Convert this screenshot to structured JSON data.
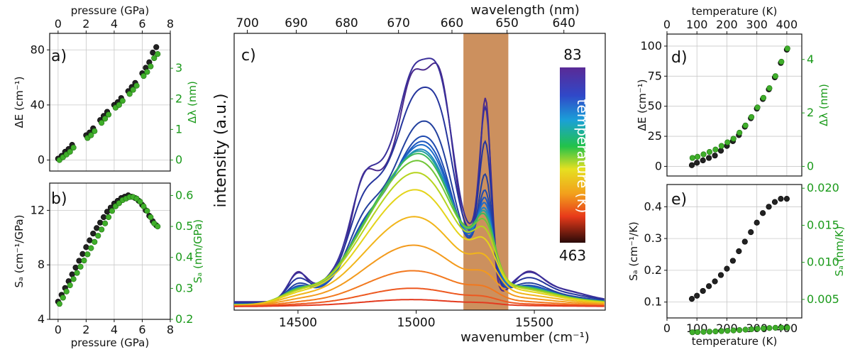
{
  "figure": {
    "panel_labels": {
      "a": "a)",
      "b": "b)",
      "c": "c)",
      "d": "d)",
      "e": "e)"
    },
    "colorbar": {
      "top_label": "83",
      "bottom_label": "463",
      "title": "temperature (K)"
    },
    "colors": {
      "black_marker": "#222222",
      "green_marker": "#1a9a1a",
      "band": "#c98a55"
    }
  },
  "chart_data": [
    {
      "id": "a",
      "type": "scatter",
      "xlabel": "pressure (GPa)",
      "ylabel": "ΔE (cm⁻¹)",
      "y2label": "Δλ (nm)",
      "xlim": [
        -0.6,
        8
      ],
      "ylim": [
        -8,
        92
      ],
      "y2lim": [
        -0.36,
        4.14
      ],
      "xticks": [
        "0",
        "2",
        "4",
        "6",
        "8"
      ],
      "yticks": [
        "0",
        "40",
        "80"
      ],
      "y2ticks": [
        "0",
        "1",
        "2",
        "3"
      ],
      "series": [
        {
          "color": "black",
          "x": [
            0,
            0.25,
            0.5,
            0.75,
            1,
            2,
            2.25,
            2.5,
            3,
            3.25,
            3.5,
            4,
            4.25,
            4.5,
            5,
            5.25,
            5.5,
            6,
            6.25,
            6.5,
            6.75,
            7
          ],
          "y": [
            1,
            3,
            6,
            8,
            11,
            18,
            20,
            23,
            29,
            32,
            35,
            40,
            42,
            45,
            50,
            53,
            56,
            63,
            67,
            71,
            78,
            82
          ]
        },
        {
          "color": "green",
          "x": [
            0.1,
            0.35,
            0.6,
            0.85,
            1.1,
            2.1,
            2.35,
            2.6,
            3.1,
            3.35,
            3.6,
            4.1,
            4.35,
            4.6,
            5.1,
            5.35,
            5.6,
            6.1,
            6.35,
            6.6,
            6.85,
            7.1
          ],
          "y": [
            0,
            2,
            4,
            6,
            9,
            16,
            18,
            21,
            27,
            30,
            33,
            38,
            40,
            43,
            48,
            51,
            54,
            61,
            64,
            68,
            74,
            77
          ]
        }
      ]
    },
    {
      "id": "b",
      "type": "scatter",
      "xlabel": "pressure (GPa)",
      "ylabel": "Sₐ (cm⁻¹/GPa)",
      "y2label": "Sₐ (nm/GPa)",
      "xlim": [
        -0.6,
        8
      ],
      "ylim": [
        4,
        14
      ],
      "y2lim": [
        0.2,
        0.64
      ],
      "xticks": [
        "0",
        "2",
        "4",
        "6",
        "8"
      ],
      "yticks": [
        "4",
        "8",
        "12"
      ],
      "y2ticks": [
        "0.2",
        "0.3",
        "0.4",
        "0.5",
        "0.6"
      ],
      "series": [
        {
          "color": "black",
          "x": [
            0,
            0.25,
            0.5,
            0.75,
            1,
            1.25,
            1.5,
            1.75,
            2,
            2.25,
            2.5,
            2.75,
            3,
            3.25,
            3.5,
            3.75,
            4,
            4.25,
            4.5,
            4.75,
            5,
            5.25,
            5.5,
            5.75,
            6,
            6.25,
            6.5,
            6.75,
            7
          ],
          "y": [
            5.3,
            5.8,
            6.3,
            6.8,
            7.3,
            7.8,
            8.3,
            8.8,
            9.3,
            9.8,
            10.3,
            10.7,
            11.1,
            11.5,
            11.9,
            12.2,
            12.5,
            12.7,
            12.9,
            13.0,
            13.1,
            13.0,
            12.9,
            12.7,
            12.4,
            12.0,
            11.6,
            11.2,
            10.9
          ]
        },
        {
          "color": "green",
          "x": [
            0.1,
            0.35,
            0.6,
            0.85,
            1.1,
            1.35,
            1.6,
            1.85,
            2.1,
            2.35,
            2.6,
            2.85,
            3.1,
            3.35,
            3.6,
            3.85,
            4.1,
            4.35,
            4.6,
            4.85,
            5.1,
            5.35,
            5.6,
            5.85,
            6.1,
            6.35,
            6.6,
            6.85,
            7.1
          ],
          "y": [
            0.25,
            0.27,
            0.29,
            0.31,
            0.33,
            0.35,
            0.37,
            0.39,
            0.41,
            0.43,
            0.45,
            0.47,
            0.49,
            0.51,
            0.53,
            0.55,
            0.565,
            0.575,
            0.585,
            0.59,
            0.595,
            0.595,
            0.59,
            0.58,
            0.565,
            0.55,
            0.53,
            0.51,
            0.5
          ]
        }
      ]
    },
    {
      "id": "c",
      "type": "line",
      "xlabel": "wavenumber (cm⁻¹)",
      "x2label": "wavelength (nm)",
      "ylabel": "intensity (a.u.)",
      "xlim": [
        14230,
        15800
      ],
      "xticks": [
        "14500",
        "15000",
        "15500"
      ],
      "x2ticks": [
        "700",
        "690",
        "680",
        "670",
        "660",
        "650",
        "640"
      ],
      "x2tick_positions_wavelength": [
        700,
        690,
        680,
        670,
        660,
        650,
        640
      ],
      "highlight_band_x": [
        15200,
        15390
      ],
      "note": "families of emission spectra from 83 K (violet, tallest) to 463 K (red, flattest)",
      "series": [
        {
          "name": "83",
          "color": "#4b2a8c",
          "y_scale": 1.0
        },
        {
          "name": "110",
          "color": "#3a2f9a",
          "y_scale": 0.95
        },
        {
          "name": "140",
          "color": "#25359d",
          "y_scale": 0.78
        },
        {
          "name": "170",
          "color": "#22409e",
          "y_scale": 0.62
        },
        {
          "name": "200",
          "color": "#1f4bb0",
          "y_scale": 0.54
        },
        {
          "name": "230",
          "color": "#1b57c0",
          "y_scale": 0.5
        },
        {
          "name": "260",
          "color": "#1e6bc8",
          "y_scale": 0.47
        },
        {
          "name": "290",
          "color": "#1f86c4",
          "y_scale": 0.44
        },
        {
          "name": "310",
          "color": "#25a0a0",
          "y_scale": 0.42
        },
        {
          "name": "330",
          "color": "#3bb85a",
          "y_scale": 0.4
        },
        {
          "name": "350",
          "color": "#70c636",
          "y_scale": 0.37
        },
        {
          "name": "370",
          "color": "#b6d41e",
          "y_scale": 0.33
        },
        {
          "name": "390",
          "color": "#e4d41a",
          "y_scale": 0.28
        },
        {
          "name": "405",
          "color": "#f1b51a",
          "y_scale": 0.21
        },
        {
          "name": "420",
          "color": "#f39a1c",
          "y_scale": 0.14
        },
        {
          "name": "435",
          "color": "#f2781e",
          "y_scale": 0.08
        },
        {
          "name": "450",
          "color": "#ed5820",
          "y_scale": 0.04
        },
        {
          "name": "463",
          "color": "#e33a1f",
          "y_scale": 0.015
        }
      ]
    },
    {
      "id": "d",
      "type": "scatter",
      "xlabel": "temperature (K)",
      "ylabel": "ΔE (cm⁻¹)",
      "y2label": "Δλ (nm)",
      "xlim": [
        0,
        450
      ],
      "ylim": [
        -8,
        110
      ],
      "y2lim": [
        -0.36,
        4.95
      ],
      "xticks": [
        "0",
        "100",
        "200",
        "300",
        "400"
      ],
      "yticks": [
        "0",
        "25",
        "50",
        "75",
        "100"
      ],
      "y2ticks": [
        "0",
        "2",
        "4"
      ],
      "series": [
        {
          "color": "black",
          "x": [
            83,
            100,
            120,
            140,
            160,
            180,
            200,
            220,
            240,
            260,
            280,
            300,
            320,
            340,
            360,
            380,
            400
          ],
          "y": [
            1,
            3,
            5,
            7,
            9,
            13,
            17,
            21,
            26,
            33,
            40,
            48,
            56,
            64,
            74,
            86,
            97
          ]
        },
        {
          "color": "green",
          "x": [
            85,
            102,
            122,
            142,
            162,
            182,
            202,
            222,
            242,
            262,
            282,
            302,
            322,
            342,
            362,
            382,
            402
          ],
          "y": [
            7,
            8,
            10,
            12,
            14,
            17,
            20,
            23,
            28,
            34,
            41,
            49,
            57,
            65,
            75,
            87,
            98
          ]
        }
      ]
    },
    {
      "id": "e",
      "type": "scatter",
      "xlabel": "temperature (K)",
      "ylabel": "Sₐ (cm⁻¹/K)",
      "y2label": "Sₐ (nm/K)",
      "xlim": [
        0,
        450
      ],
      "ylim": [
        0.05,
        0.47
      ],
      "y2lim": [
        0.0025,
        0.0205
      ],
      "xticks": [
        "0",
        "100",
        "200",
        "300",
        "400"
      ],
      "yticks": [
        "0.1",
        "0.2",
        "0.3",
        "0.4"
      ],
      "y2ticks": [
        "0.005",
        "0.010",
        "0.015",
        "0.020"
      ],
      "series": [
        {
          "color": "black",
          "x": [
            83,
            100,
            120,
            140,
            160,
            180,
            200,
            220,
            240,
            260,
            280,
            300,
            320,
            340,
            360,
            380,
            400
          ],
          "y": [
            0.11,
            0.12,
            0.135,
            0.15,
            0.165,
            0.185,
            0.205,
            0.23,
            0.26,
            0.29,
            0.32,
            0.35,
            0.38,
            0.4,
            0.415,
            0.425,
            0.425
          ]
        },
        {
          "color": "green",
          "x": [
            85,
            102,
            122,
            142,
            162,
            182,
            202,
            222,
            242,
            262,
            282,
            302,
            322,
            342,
            362,
            382,
            402
          ],
          "y": [
            0.0049,
            0.0055,
            0.0062,
            0.0069,
            0.0076,
            0.0085,
            0.0095,
            0.0106,
            0.0118,
            0.0131,
            0.0145,
            0.0159,
            0.0172,
            0.0182,
            0.019,
            0.0194,
            0.0194
          ]
        }
      ]
    }
  ]
}
